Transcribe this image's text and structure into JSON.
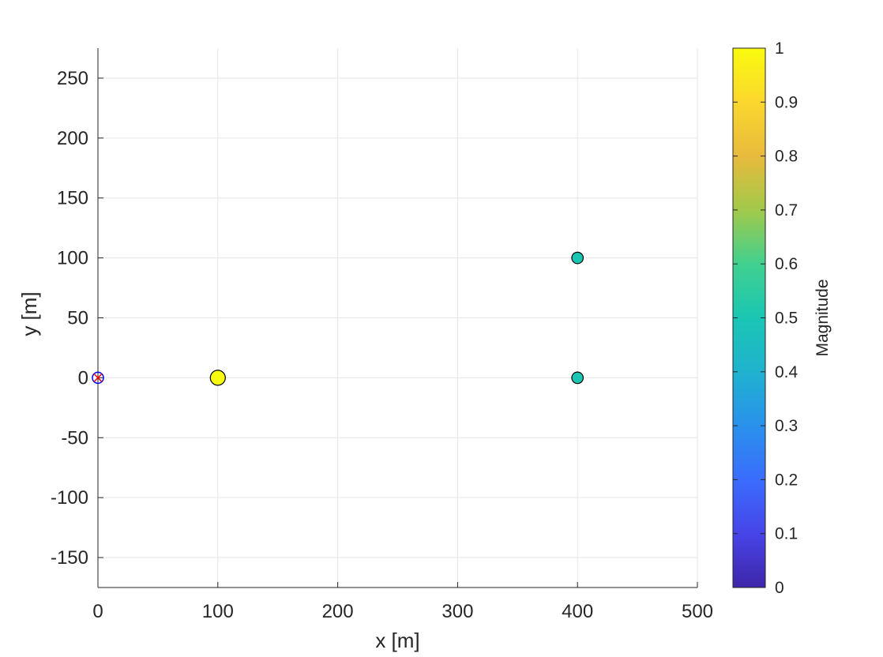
{
  "chart_data": {
    "type": "scatter",
    "xlabel": "x [m]",
    "ylabel": "y [m]",
    "xlim": [
      0,
      500
    ],
    "ylim": [
      -175,
      275
    ],
    "xticks": [
      0,
      100,
      200,
      300,
      400,
      500
    ],
    "yticks": [
      -150,
      -100,
      -50,
      0,
      50,
      100,
      150,
      200,
      250
    ],
    "xtick_labels": [
      "0",
      "100",
      "200",
      "300",
      "400",
      "500"
    ],
    "ytick_labels": [
      "-150",
      "-100",
      "-50",
      "0",
      "50",
      "100",
      "150",
      "200",
      "250"
    ],
    "grid": true,
    "points": [
      {
        "x": 100,
        "y": 0,
        "magnitude": 1.0
      },
      {
        "x": 400,
        "y": 100,
        "magnitude": 0.5
      },
      {
        "x": 400,
        "y": 0,
        "magnitude": 0.5
      }
    ],
    "origin_markers": [
      {
        "x": 0,
        "y": 0,
        "symbol": "circle",
        "color": "#0000ff"
      },
      {
        "x": 0,
        "y": 0,
        "symbol": "x",
        "color": "#ff0000"
      }
    ],
    "colorbar": {
      "label": "Magnitude",
      "range": [
        0,
        1
      ],
      "ticks": [
        0,
        0.1,
        0.2,
        0.3,
        0.4,
        0.5,
        0.6,
        0.7,
        0.8,
        0.9,
        1
      ],
      "tick_labels": [
        "0",
        "0.1",
        "0.2",
        "0.3",
        "0.4",
        "0.5",
        "0.6",
        "0.7",
        "0.8",
        "0.9",
        "1"
      ],
      "colormap": "parula",
      "colormap_stops": [
        "#3e26a8",
        "#4744e8",
        "#3a6dfd",
        "#2a91ec",
        "#1fb2ce",
        "#1ac6b3",
        "#41d08f",
        "#a2c94a",
        "#e8ba3c",
        "#fbd72e",
        "#f9fb0e"
      ]
    }
  }
}
